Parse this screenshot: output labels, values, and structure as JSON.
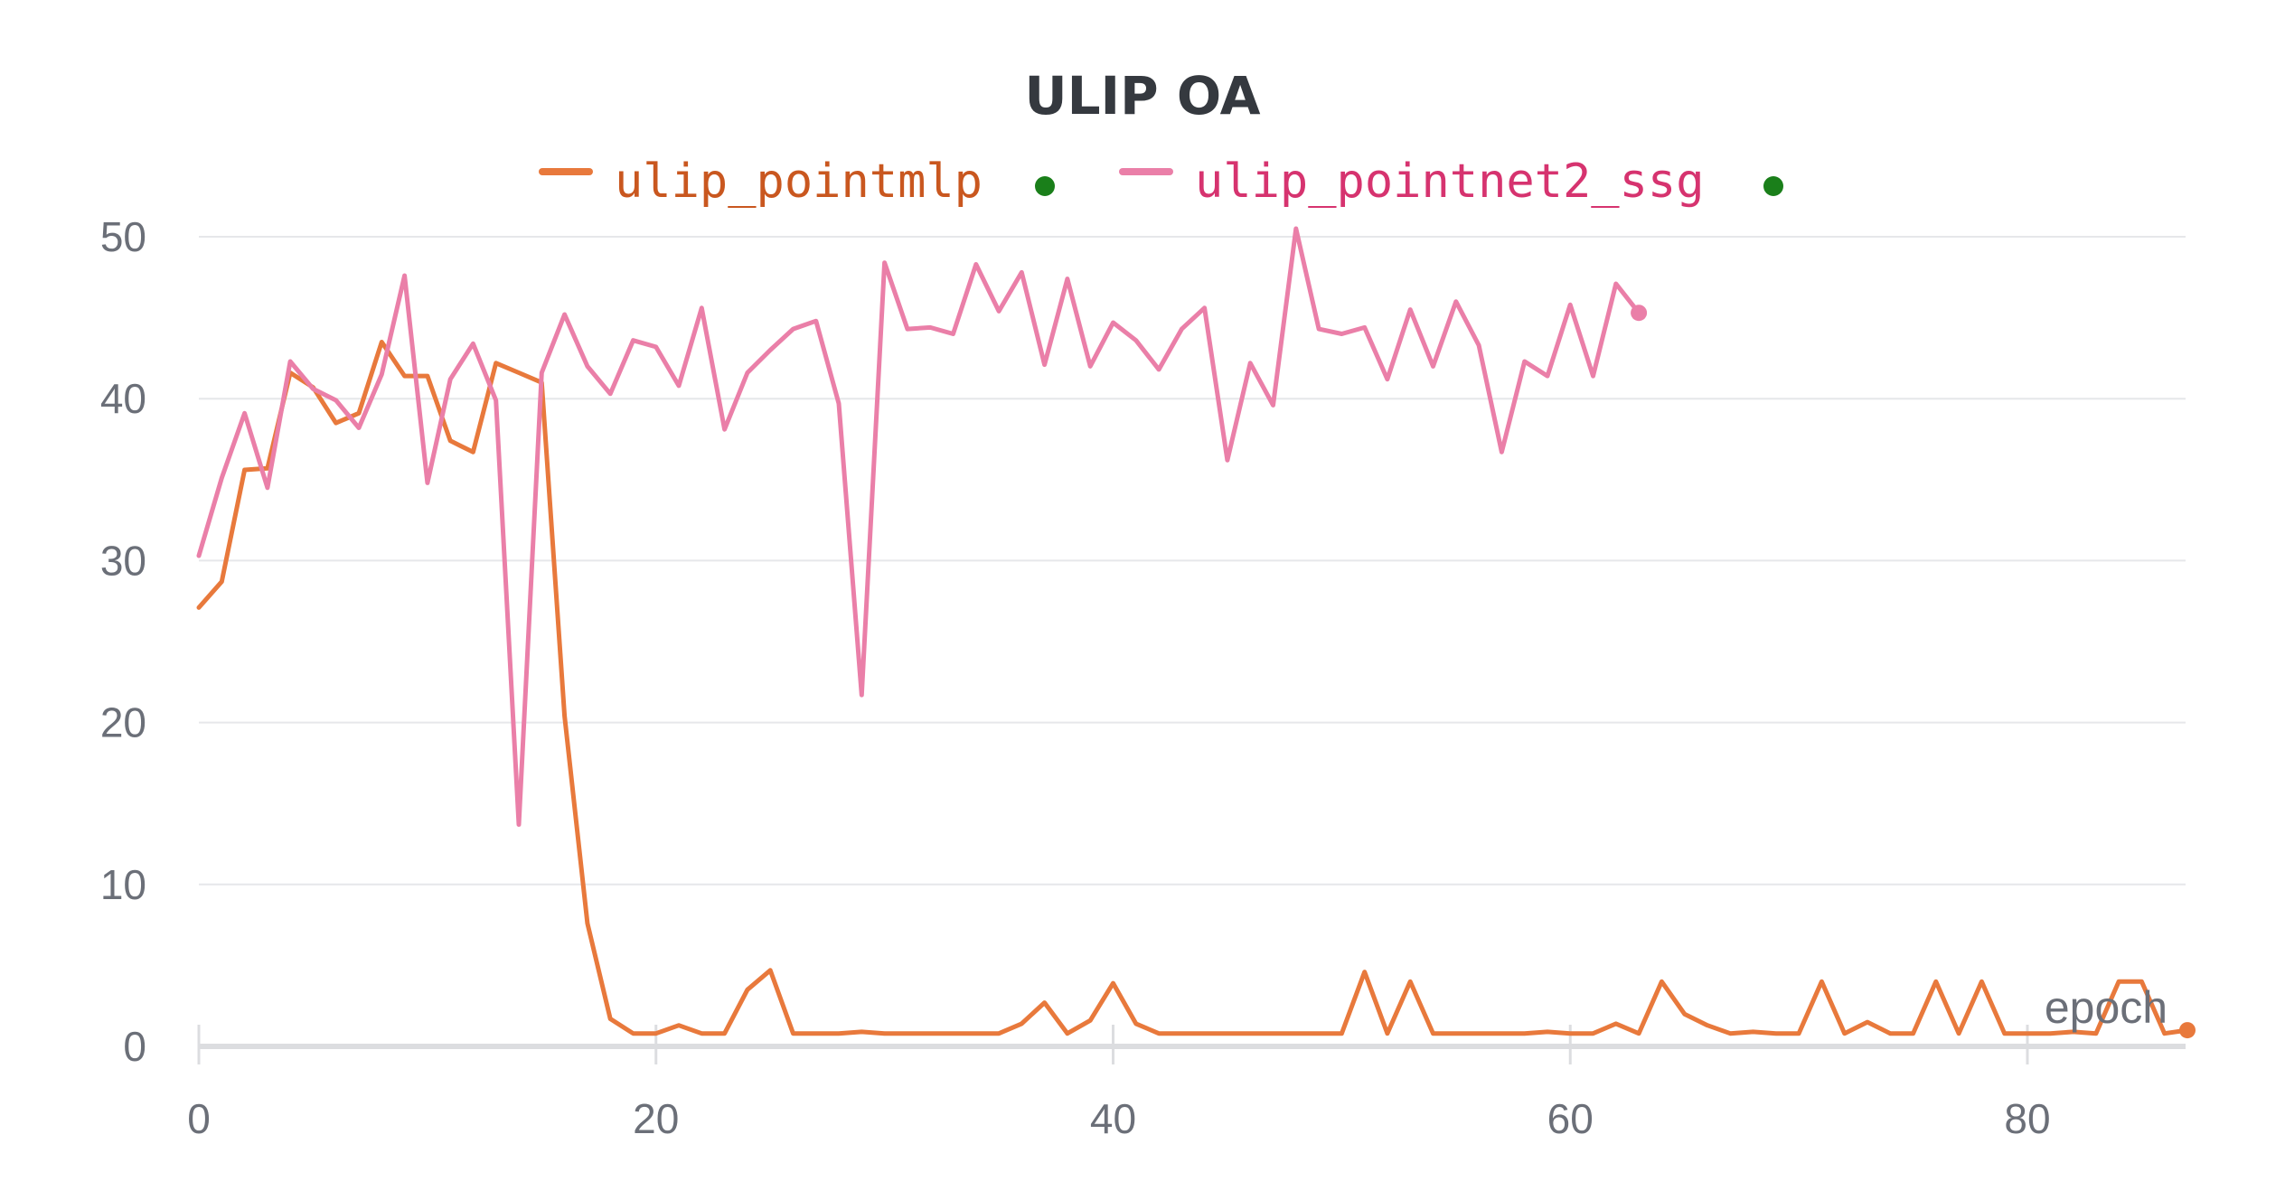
{
  "chart_data": {
    "type": "line",
    "title": "ULIP OA",
    "xlabel": "epoch",
    "ylabel": "",
    "xlim": [
      0,
      87
    ],
    "ylim": [
      0,
      50
    ],
    "x_ticks": [
      0,
      20,
      40,
      60,
      80
    ],
    "y_ticks": [
      0,
      10,
      20,
      30,
      40,
      50
    ],
    "grid": true,
    "legend_position": "top-center",
    "status_dot_color": "#1a7f1a",
    "series": [
      {
        "name": "ulip_pointmlp",
        "color": "#e8793c",
        "label_color": "#c9571f",
        "x": [
          0,
          1,
          2,
          3,
          4,
          5,
          6,
          7,
          8,
          9,
          10,
          11,
          12,
          13,
          14,
          15,
          16,
          17,
          18,
          19,
          20,
          21,
          22,
          23,
          24,
          25,
          26,
          27,
          28,
          29,
          30,
          31,
          32,
          33,
          34,
          35,
          36,
          37,
          38,
          39,
          40,
          41,
          42,
          43,
          44,
          45,
          46,
          47,
          48,
          49,
          50,
          51,
          52,
          53,
          54,
          55,
          56,
          57,
          58,
          59,
          60,
          61,
          62,
          63,
          64,
          65,
          66,
          67,
          68,
          69,
          70,
          71,
          72,
          73,
          74,
          75,
          76,
          77,
          78,
          79,
          80,
          81,
          82,
          83,
          84,
          85,
          86,
          87
        ],
        "values": [
          27.1,
          28.7,
          35.6,
          35.7,
          41.6,
          40.7,
          38.5,
          39.1,
          43.5,
          41.4,
          41.4,
          37.4,
          36.7,
          42.2,
          41.6,
          41.0,
          20.4,
          7.6,
          1.7,
          0.8,
          0.8,
          1.3,
          0.8,
          0.8,
          3.5,
          4.7,
          0.8,
          0.8,
          0.8,
          0.9,
          0.8,
          0.8,
          0.8,
          0.8,
          0.8,
          0.8,
          1.4,
          2.7,
          0.8,
          1.6,
          3.9,
          1.4,
          0.8,
          0.8,
          0.8,
          0.8,
          0.8,
          0.8,
          0.8,
          0.8,
          0.8,
          4.6,
          0.8,
          4.0,
          0.8,
          0.8,
          0.8,
          0.8,
          0.8,
          0.9,
          0.8,
          0.8,
          1.4,
          0.8,
          4.0,
          2.0,
          1.3,
          0.8,
          0.9,
          0.8,
          0.8,
          4.0,
          0.8,
          1.5,
          0.8,
          0.8,
          4.0,
          0.8,
          4.0,
          0.8,
          0.8,
          0.8,
          0.9,
          0.8,
          4.0,
          4.0,
          0.8,
          1.0
        ]
      },
      {
        "name": "ulip_pointnet2_ssg",
        "color": "#ea7fa8",
        "label_color": "#d6336f",
        "x": [
          0,
          1,
          2,
          3,
          4,
          5,
          6,
          7,
          8,
          9,
          10,
          11,
          12,
          13,
          14,
          15,
          16,
          17,
          18,
          19,
          20,
          21,
          22,
          23,
          24,
          25,
          26,
          27,
          28,
          29,
          30,
          31,
          32,
          33,
          34,
          35,
          36,
          37,
          38,
          39,
          40,
          41,
          42,
          43,
          44,
          45,
          46,
          47,
          48,
          49,
          50,
          51,
          52,
          53,
          54,
          55,
          56,
          57,
          58,
          59,
          60,
          61,
          62,
          63
        ],
        "values": [
          30.3,
          35.1,
          39.1,
          34.5,
          42.3,
          40.6,
          39.9,
          38.2,
          41.5,
          47.6,
          34.8,
          41.2,
          43.4,
          39.9,
          13.7,
          41.6,
          45.2,
          42.0,
          40.3,
          43.6,
          43.2,
          40.8,
          45.6,
          38.1,
          41.6,
          43.0,
          44.3,
          44.8,
          39.7,
          21.7,
          48.4,
          44.3,
          44.4,
          44.0,
          48.3,
          45.4,
          47.8,
          42.1,
          47.4,
          42.0,
          44.7,
          43.6,
          41.8,
          44.3,
          45.6,
          36.2,
          42.2,
          39.6,
          50.5,
          44.3,
          44.0,
          44.4,
          41.2,
          45.5,
          42.0,
          46.0,
          43.3,
          36.7,
          42.3,
          41.4,
          45.8,
          41.4,
          47.1,
          45.3
        ]
      }
    ]
  }
}
